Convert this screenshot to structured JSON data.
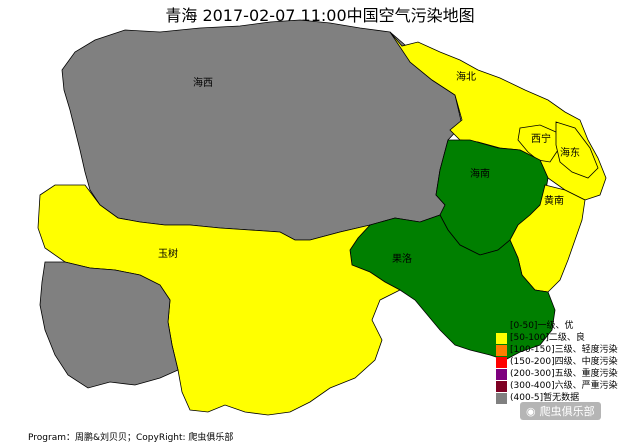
{
  "title": "青海 2017-02-07 11:00中国空气污染地图",
  "regions": {
    "haixi": {
      "label": "海西",
      "color": "#808080"
    },
    "haibei": {
      "label": "海北",
      "color": "#ffff00"
    },
    "xining": {
      "label": "西宁",
      "color": "#ffff00"
    },
    "haidong": {
      "label": "海东",
      "color": "#ffff00"
    },
    "hainan": {
      "label": "海南",
      "color": "#007f00"
    },
    "huangnan": {
      "label": "黄南",
      "color": "#ffff00"
    },
    "guoluo": {
      "label": "果洛",
      "color": "#007f00"
    },
    "yushu": {
      "label": "玉树",
      "color": "#ffff00"
    },
    "west_enclave": {
      "color": "#808080"
    }
  },
  "legend": [
    {
      "label": "[0-50]一级、优",
      "color": "#007f00"
    },
    {
      "label": "[50-100]二级、良",
      "color": "#ffff00"
    },
    {
      "label": "[100-150]三级、轻度污染",
      "color": "#ff7e00"
    },
    {
      "label": "(150-200]四级、中度污染",
      "color": "#ff0000"
    },
    {
      "label": "(200-300]五级、重度污染",
      "color": "#7e007e"
    },
    {
      "label": "(300-400]六级、严重污染",
      "color": "#7e0023"
    },
    {
      "label": "(400-5]暂无数据",
      "color": "#808080"
    }
  ],
  "footer": "Program：周鹏&刘贝贝；CopyRight: 爬虫俱乐部",
  "watermark": "爬虫俱乐部",
  "icons": {
    "watermark_icon": "wechat-icon"
  }
}
